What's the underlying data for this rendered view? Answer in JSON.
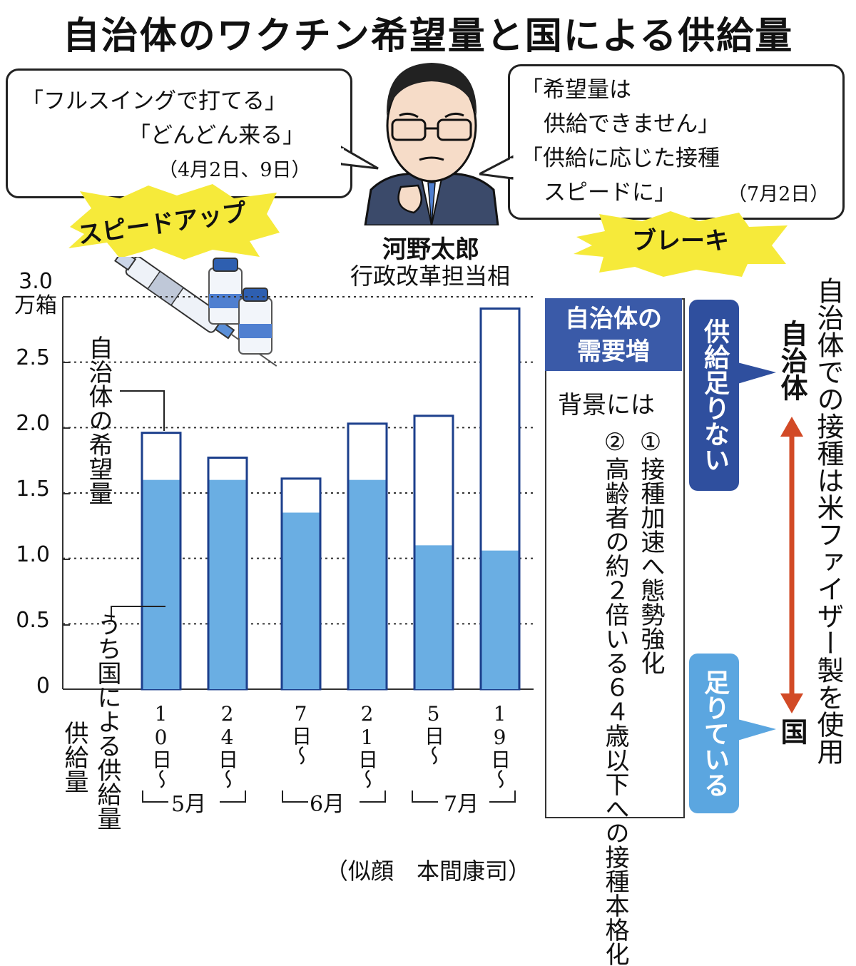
{
  "title": "自治体のワクチン希望量と国による供給量",
  "figure": {
    "name": "河野太郎",
    "position": "行政改革担当相",
    "quote_left": [
      "「フルスイングで打てる」",
      "「どんどん来る」",
      "（4月2日、9日）"
    ],
    "quote_right": [
      "「希望量は",
      "供給できません」",
      "「供給に応じた接種",
      "スピードに」",
      "（7月2日）"
    ],
    "label_left": "スピードアップ",
    "label_right": "ブレーキ"
  },
  "legend": {
    "demand": "自治体の希望量",
    "supply": "うち国による供給量"
  },
  "axis": {
    "unit": "3.0\n万箱",
    "ticks": [
      "0",
      "0.5",
      "1.0",
      "1.5",
      "2.0",
      "2.5"
    ],
    "month_labels": [
      "5月",
      "6月",
      "7月"
    ],
    "supply_label": "供給量"
  },
  "chart_data": {
    "type": "bar",
    "categories": [
      "10日～",
      "24日～",
      "7日～",
      "21日～",
      "5日～",
      "19日～"
    ],
    "months": [
      "5月",
      "5月",
      "6月",
      "6月",
      "7月",
      "7月"
    ],
    "series": [
      {
        "name": "自治体の希望量",
        "values": [
          1.96,
          1.77,
          1.61,
          2.03,
          2.09,
          2.91
        ]
      },
      {
        "name": "うち国による供給量",
        "values": [
          1.6,
          1.6,
          1.35,
          1.6,
          1.1,
          1.06
        ]
      }
    ],
    "ylim": [
      0,
      3.0
    ],
    "unit": "万箱",
    "colors": {
      "demand": "#ffffff",
      "supply": "#6aaee3",
      "outline": "#1c3f8c"
    },
    "grid": "dotted"
  },
  "panel": {
    "header": "自治体の\n需要増",
    "intro": "背景には",
    "reason1": "①接種加速へ態勢強化",
    "reason2": "②高齢者の約２倍いる６４歳以下への接種本格化"
  },
  "right_side": {
    "shortage": "供給足りない",
    "sufficient": "足りている",
    "top_label": "自治体",
    "bottom_label": "国",
    "note": "自治体での接種は米ファイザー製を使用"
  },
  "credit": "（似顔　本間康司）"
}
